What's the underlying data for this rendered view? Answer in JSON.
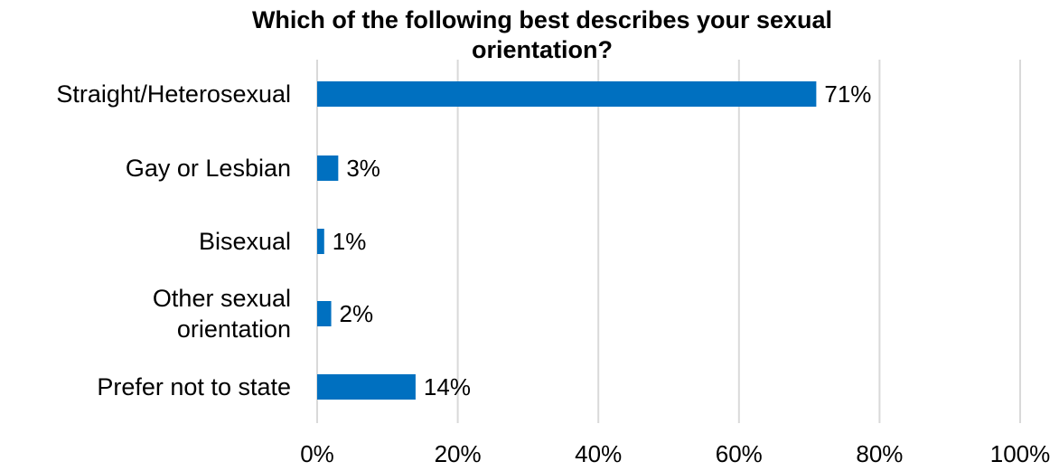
{
  "chart_data": {
    "type": "bar",
    "orientation": "horizontal",
    "title": "Which of the following best describes your sexual orientation?",
    "categories": [
      "Straight/Heterosexual",
      "Gay or Lesbian",
      "Bisexual",
      "Other sexual orientation",
      "Prefer not to state"
    ],
    "category_lines": [
      [
        "Straight/Heterosexual"
      ],
      [
        "Gay or Lesbian"
      ],
      [
        "Bisexual"
      ],
      [
        "Other sexual",
        "orientation"
      ],
      [
        "Prefer not to state"
      ]
    ],
    "values": [
      71,
      3,
      1,
      2,
      14
    ],
    "data_labels": [
      "71%",
      "3%",
      "1%",
      "2%",
      "14%"
    ],
    "xlim": [
      0,
      100
    ],
    "xticks": [
      0,
      20,
      40,
      60,
      80,
      100
    ],
    "xtick_labels": [
      "0%",
      "20%",
      "40%",
      "60%",
      "80%",
      "100%"
    ],
    "xlabel": "",
    "ylabel": "",
    "grid": true,
    "legend": "none",
    "colors": {
      "bar": "#0070C0",
      "grid": "#D9D9D9",
      "text": "#000000"
    }
  }
}
